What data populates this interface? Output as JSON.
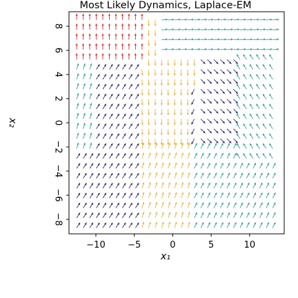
{
  "chart_data": {
    "type": "quiver",
    "title": "Most Likely Dynamics, Laplace-EM",
    "xlabel": "x₁",
    "ylabel": "x₂",
    "xlim": [
      -13.5,
      14.5
    ],
    "ylim": [
      -9.2,
      9.2
    ],
    "xticks": [
      "-10",
      "-5",
      "0",
      "5",
      "10"
    ],
    "xtick_values": [
      -10,
      -5,
      0,
      5,
      10
    ],
    "yticks": [
      "-8",
      "-6",
      "-4",
      "-2",
      "0",
      "2",
      "4",
      "6",
      "8"
    ],
    "ytick_values": [
      -8,
      -6,
      -4,
      -2,
      0,
      2,
      4,
      6,
      8
    ],
    "grid": false,
    "legend": "none",
    "arrow_grid": {
      "x_start": -12.5,
      "x_end": 13.5,
      "x_step": 0.85,
      "y_start": -8.7,
      "y_end": 8.7,
      "y_step": 0.82
    },
    "regions": [
      {
        "color": "#e8262a",
        "description": "left / upper-left"
      },
      {
        "color": "#3a9e9a",
        "description": "upper-right / right / lower-left"
      },
      {
        "color": "#2e2a6b",
        "description": "center-right band"
      },
      {
        "color": "#f0b23a",
        "description": "center / lower-center"
      }
    ],
    "colors": {
      "red": "#e8262a",
      "teal": "#3a9e9a",
      "navy": "#2e2a6b",
      "gold": "#f0b23a"
    }
  }
}
